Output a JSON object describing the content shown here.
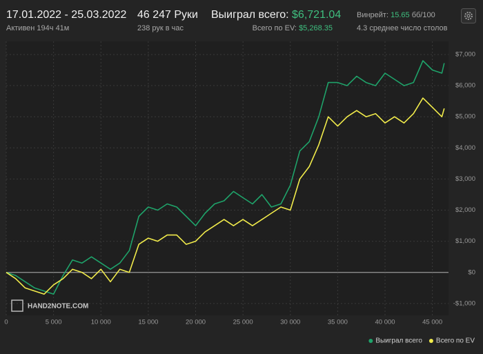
{
  "header": {
    "date_range": "17.01.2022 - 25.03.2022",
    "active": "Активен 194ч 41м",
    "hands": "46 247 Руки",
    "hands_per_hour": "238 рук в час",
    "won_label": "Выиграл всего:",
    "won_value": "$6,721.04",
    "ev_label": "Всего по EV:",
    "ev_value": "$5,268.35",
    "winrate_label": "Винрейт:",
    "winrate_value": "15.65",
    "winrate_unit": "бб/100",
    "tables": "4.3 среднее число столов",
    "watermark": "HAND2NOTE.COM"
  },
  "chart_data": {
    "type": "line",
    "x": [
      0,
      1000,
      2000,
      3000,
      4000,
      5000,
      6000,
      7000,
      8000,
      9000,
      10000,
      11000,
      12000,
      13000,
      14000,
      15000,
      16000,
      17000,
      18000,
      19000,
      20000,
      21000,
      22000,
      23000,
      24000,
      25000,
      26000,
      27000,
      28000,
      29000,
      30000,
      31000,
      32000,
      33000,
      34000,
      35000,
      36000,
      37000,
      38000,
      39000,
      40000,
      41000,
      42000,
      43000,
      44000,
      45000,
      46000,
      46247
    ],
    "series": [
      {
        "name": "Выиграл всего",
        "color": "#1fa36a",
        "values": [
          0,
          -100,
          -300,
          -500,
          -600,
          -700,
          -100,
          400,
          300,
          500,
          300,
          100,
          300,
          700,
          1800,
          2100,
          2000,
          2200,
          2100,
          1800,
          1500,
          1900,
          2200,
          2300,
          2600,
          2400,
          2200,
          2500,
          2100,
          2200,
          2800,
          3900,
          4200,
          5000,
          6100,
          6100,
          6000,
          6300,
          6100,
          6000,
          6400,
          6200,
          6000,
          6100,
          6800,
          6500,
          6400,
          6721.04
        ]
      },
      {
        "name": "Всего по EV",
        "color": "#f2ec4b",
        "values": [
          0,
          -200,
          -500,
          -600,
          -700,
          -400,
          -200,
          100,
          0,
          -200,
          100,
          -300,
          100,
          0,
          900,
          1100,
          1000,
          1200,
          1200,
          900,
          1000,
          1300,
          1500,
          1700,
          1500,
          1700,
          1500,
          1700,
          1900,
          2100,
          2000,
          3000,
          3400,
          4100,
          5000,
          4700,
          5000,
          5200,
          5000,
          5100,
          4800,
          5000,
          4800,
          5100,
          5600,
          5300,
          5000,
          5268.35
        ]
      }
    ],
    "xlim": [
      0,
      46700
    ],
    "ylim": [
      -1380,
      7420
    ],
    "xticks": [
      0,
      {
        "value": 5000,
        "label": "5 000"
      },
      {
        "value": 10000,
        "label": "10 000"
      },
      {
        "value": 15000,
        "label": "15 000"
      },
      {
        "value": 20000,
        "label": "20 000"
      },
      {
        "value": 25000,
        "label": "25 000"
      },
      {
        "value": 30000,
        "label": "30 000"
      },
      {
        "value": 35000,
        "label": "35 000"
      },
      {
        "value": 40000,
        "label": "40 000"
      },
      {
        "value": 45000,
        "label": "45 000"
      }
    ],
    "yticks": [
      {
        "value": -1000,
        "label": "-$1,000"
      },
      {
        "value": 0,
        "label": "$0"
      },
      {
        "value": 1000,
        "label": "$1,000"
      },
      {
        "value": 2000,
        "label": "$2,000"
      },
      {
        "value": 3000,
        "label": "$3,000"
      },
      {
        "value": 4000,
        "label": "$4,000"
      },
      {
        "value": 5000,
        "label": "$5,000"
      },
      {
        "value": 6000,
        "label": "$6,000"
      },
      {
        "value": 7000,
        "label": "$7,000"
      }
    ],
    "grid": true,
    "legend": "bottom-right"
  }
}
